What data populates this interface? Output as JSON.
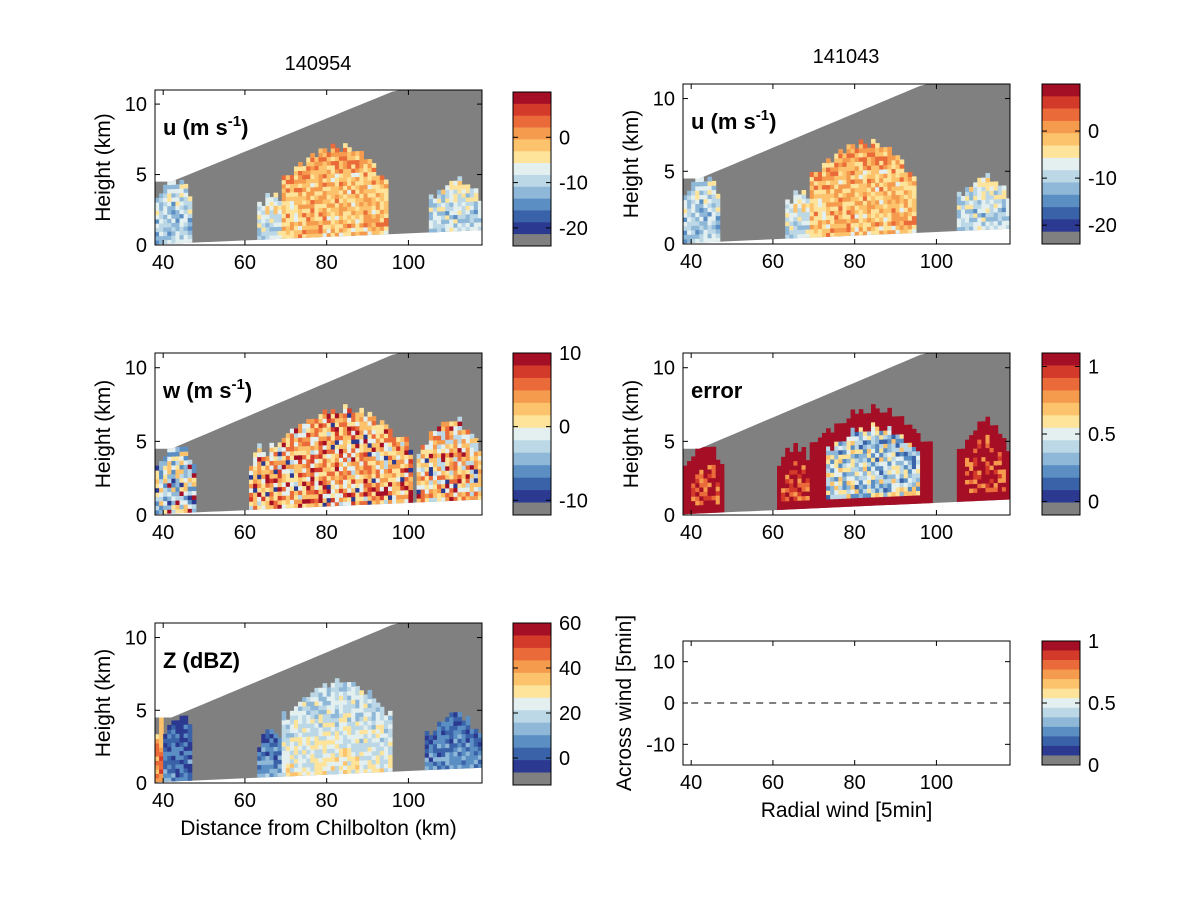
{
  "figure": {
    "col_titles": [
      "140954",
      "141043"
    ]
  },
  "colormap": [
    "#2b3990",
    "#3a62a8",
    "#5b8fc4",
    "#8fb8d8",
    "#bcd8e6",
    "#e4f0f0",
    "#fde49a",
    "#fcc36c",
    "#f59b4e",
    "#ea6a3a",
    "#d43a2a",
    "#a50f26"
  ],
  "nodata_color": "#808080",
  "chart_data": [
    {
      "type": "heatmap",
      "title": "140954",
      "panel_label": "u (m s",
      "panel_label_sup": "-1",
      "panel_label_tail": ")",
      "xlabel": "",
      "ylabel": "Height (km)",
      "xlim": [
        38,
        118
      ],
      "ylim": [
        0,
        11
      ],
      "xticks": [
        40,
        60,
        80,
        100
      ],
      "yticks": [
        0,
        5,
        10
      ],
      "colorbar": {
        "ticks": [
          0,
          -10,
          -20
        ],
        "range": [
          -24,
          10
        ]
      },
      "pattern": "u",
      "precip_regions": [
        {
          "x0": 38,
          "x1": 47,
          "ytop": 4.5,
          "value": -12
        },
        {
          "x0": 63,
          "x1": 69,
          "ytop": 3.5,
          "value": -10
        },
        {
          "x0": 69,
          "x1": 95,
          "ytop": 6.8,
          "value": -3
        },
        {
          "x0": 105,
          "x1": 118,
          "ytop": 4.5,
          "value": -11
        }
      ]
    },
    {
      "type": "heatmap",
      "title": "141043",
      "panel_label": "u (m s",
      "panel_label_sup": "-1",
      "panel_label_tail": ")",
      "xlabel": "",
      "ylabel": "Height (km)",
      "xlim": [
        38,
        118
      ],
      "ylim": [
        0,
        11
      ],
      "xticks": [
        40,
        60,
        80,
        100
      ],
      "yticks": [
        0,
        5,
        10
      ],
      "colorbar": {
        "ticks": [
          0,
          -10,
          -20
        ],
        "range": [
          -24,
          10
        ]
      },
      "pattern": "u",
      "precip_regions": [
        {
          "x0": 38,
          "x1": 47,
          "ytop": 4.5,
          "value": -12
        },
        {
          "x0": 63,
          "x1": 69,
          "ytop": 3.5,
          "value": -10
        },
        {
          "x0": 69,
          "x1": 95,
          "ytop": 6.8,
          "value": -3
        },
        {
          "x0": 105,
          "x1": 118,
          "ytop": 4.5,
          "value": -11
        }
      ]
    },
    {
      "type": "heatmap",
      "title": "",
      "panel_label": "w (m s",
      "panel_label_sup": "-1",
      "panel_label_tail": ")",
      "xlabel": "",
      "ylabel": "Height (km)",
      "xlim": [
        38,
        118
      ],
      "ylim": [
        0,
        11
      ],
      "xticks": [
        40,
        60,
        80,
        100
      ],
      "yticks": [
        0,
        5,
        10
      ],
      "colorbar": {
        "ticks": [
          10,
          0,
          -10
        ],
        "range": [
          -12,
          10
        ]
      },
      "pattern": "w",
      "precip_regions": [
        {
          "x0": 38,
          "x1": 48,
          "ytop": 4.5,
          "value": -3
        },
        {
          "x0": 61,
          "x1": 66,
          "ytop": 4.5,
          "value": 2
        },
        {
          "x0": 66,
          "x1": 101,
          "ytop": 7.0,
          "value": 2
        },
        {
          "x0": 102,
          "x1": 118,
          "ytop": 6.3,
          "value": 1
        }
      ]
    },
    {
      "type": "heatmap",
      "title": "",
      "panel_label": "error",
      "panel_label_sup": "",
      "panel_label_tail": "",
      "xlabel": "",
      "ylabel": "Height (km)",
      "xlim": [
        38,
        118
      ],
      "ylim": [
        0,
        11
      ],
      "xticks": [
        40,
        60,
        80,
        100
      ],
      "yticks": [
        0,
        5,
        10
      ],
      "colorbar": {
        "ticks": [
          1,
          0.5,
          0
        ],
        "range": [
          -0.1,
          1.1
        ]
      },
      "pattern": "error",
      "precip_regions": [
        {
          "x0": 38,
          "x1": 48,
          "ytop": 4.5,
          "value": 1.0
        },
        {
          "x0": 61,
          "x1": 69,
          "ytop": 4.5,
          "value": 1.0
        },
        {
          "x0": 69,
          "x1": 99,
          "ytop": 7.0,
          "value": 0.35
        },
        {
          "x0": 105,
          "x1": 118,
          "ytop": 6.3,
          "value": 1.0
        }
      ]
    },
    {
      "type": "heatmap",
      "title": "",
      "panel_label": "Z (dBZ)",
      "panel_label_sup": "",
      "panel_label_tail": "",
      "xlabel": "Distance from Chilbolton (km)",
      "ylabel": "Height (km)",
      "xlim": [
        38,
        118
      ],
      "ylim": [
        0,
        11
      ],
      "xticks": [
        40,
        60,
        80,
        100
      ],
      "yticks": [
        0,
        5,
        10
      ],
      "colorbar": {
        "ticks": [
          60,
          40,
          20,
          0
        ],
        "range": [
          -12,
          60
        ]
      },
      "pattern": "z",
      "precip_regions": [
        {
          "x0": 38,
          "x1": 40,
          "ytop": 4.5,
          "value": 45
        },
        {
          "x0": 40,
          "x1": 47,
          "ytop": 4.5,
          "value": 2
        },
        {
          "x0": 63,
          "x1": 69,
          "ytop": 3.5,
          "value": 5
        },
        {
          "x0": 69,
          "x1": 96,
          "ytop": 6.8,
          "value": 25
        },
        {
          "x0": 104,
          "x1": 118,
          "ytop": 4.5,
          "value": 5
        }
      ]
    },
    {
      "type": "line",
      "title": "",
      "panel_label": "",
      "xlabel": "Radial wind [5min]",
      "ylabel": "Across wind [5min]",
      "xlim": [
        38,
        118
      ],
      "ylim": [
        -15,
        15
      ],
      "xticks": [
        40,
        60,
        80,
        100
      ],
      "yticks": [
        10,
        0,
        -10
      ],
      "colorbar": {
        "ticks": [
          1,
          0.5,
          0
        ],
        "range": [
          0,
          1
        ]
      },
      "series": [
        {
          "x": [
            40,
            50,
            60,
            70,
            80,
            90,
            100,
            110,
            118
          ],
          "y": [
            0,
            0,
            0,
            0,
            0,
            0,
            0,
            0,
            0
          ],
          "style": "dashed"
        }
      ]
    }
  ]
}
